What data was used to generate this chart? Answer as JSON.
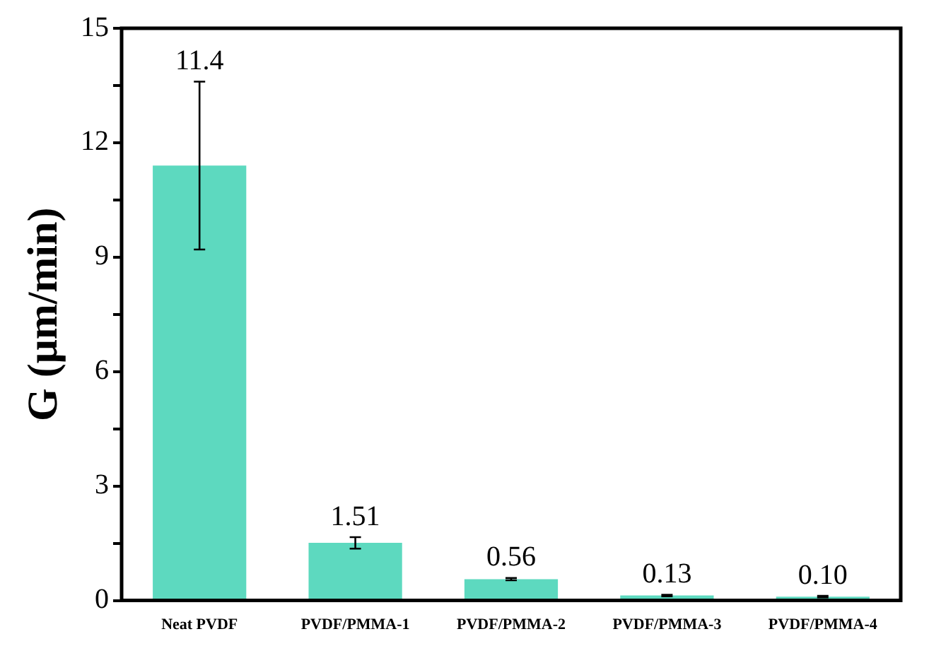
{
  "chart_data": {
    "type": "bar",
    "ylabel": "G (μm/min)",
    "categories": [
      "Neat PVDF",
      "PVDF/PMMA-1",
      "PVDF/PMMA-2",
      "PVDF/PMMA-3",
      "PVDF/PMMA-4"
    ],
    "values": [
      11.4,
      1.51,
      0.56,
      0.13,
      0.1
    ],
    "value_labels": [
      "11.4",
      "1.51",
      "0.56",
      "0.13",
      "0.10"
    ],
    "errors": [
      2.2,
      0.15,
      0.03,
      0.02,
      0.02
    ],
    "color": "#5dd9bf",
    "ylim": [
      0,
      15
    ],
    "yticks": [
      0,
      {
        "value": 1.5,
        "label": null
      },
      3,
      {
        "value": 4.5,
        "label": null
      },
      6,
      {
        "value": 7.5,
        "label": null
      },
      9,
      {
        "value": 10.5,
        "label": null
      },
      12,
      {
        "value": 13.5,
        "label": null
      },
      15
    ],
    "grid": false,
    "legend": false
  }
}
